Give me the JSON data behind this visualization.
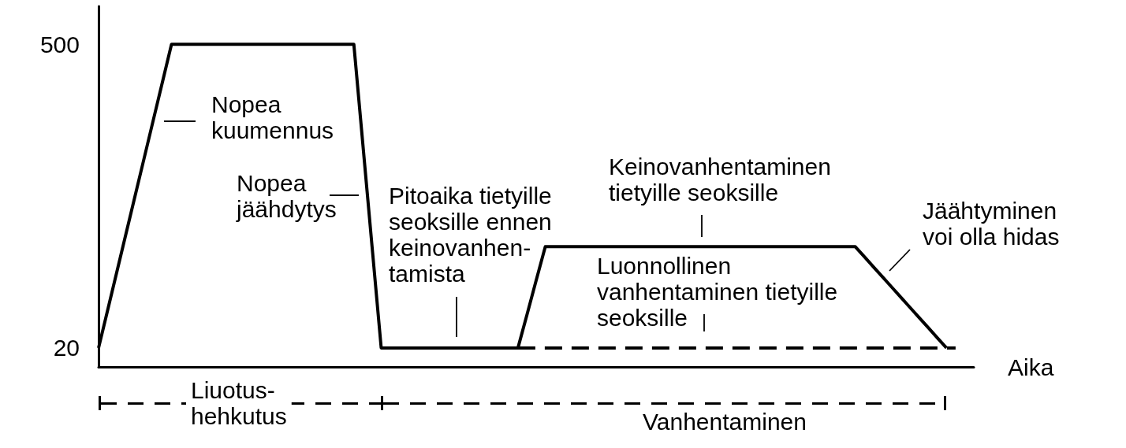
{
  "chart_data": {
    "type": "line",
    "xlabel": "Aika",
    "categories": [
      null,
      null,
      null,
      null,
      null,
      null,
      null,
      null,
      null,
      null,
      null,
      null,
      null,
      null,
      null,
      null,
      null,
      null,
      null,
      null,
      null,
      null,
      null,
      null,
      null,
      null,
      null,
      null,
      null,
      null,
      null,
      null,
      null,
      null,
      null,
      null,
      null,
      null,
      null,
      null,
      null,
      null,
      null,
      null,
      null,
      null,
      null,
      null,
      null,
      null,
      null,
      null,
      null,
      null,
      null,
      null,
      null,
      null,
      null,
      null,
      null,
      null,
      null,
      null,
      null,
      null,
      null,
      null,
      null,
      null,
      null,
      null,
      null,
      null,
      null,
      null,
      null,
      null,
      null,
      null,
      null,
      null,
      null,
      null,
      null,
      null,
      null,
      null,
      null,
      null,
      null,
      null,
      null,
      null,
      null,
      null,
      null
    ],
    "series": [
      {
        "color": "#000000",
        "line_style": "solid",
        "values": [
          20,
          80,
          140,
          200,
          260,
          320,
          380,
          440,
          500,
          500,
          500,
          500,
          500,
          500,
          500,
          500,
          500,
          500,
          500,
          500,
          500,
          500,
          500,
          500,
          500,
          500,
          500,
          500,
          500,
          340,
          180,
          20,
          20,
          20,
          20,
          20,
          20,
          20,
          20,
          20,
          20,
          20,
          20,
          20,
          20,
          20,
          20,
          73,
          127,
          180,
          180,
          180,
          180,
          180,
          180,
          180,
          180,
          180,
          180,
          180,
          180,
          180,
          180,
          180,
          180,
          180,
          180,
          180,
          180,
          180,
          180,
          180,
          180,
          180,
          180,
          180,
          180,
          180,
          180,
          180,
          180,
          180,
          180,
          180,
          164,
          148,
          132,
          116,
          100,
          84,
          68,
          52,
          36,
          20,
          null,
          null,
          null
        ]
      },
      {
        "color": "#000000",
        "line_style": "dashed",
        "values": [
          null,
          null,
          null,
          null,
          null,
          null,
          null,
          null,
          null,
          null,
          null,
          null,
          null,
          null,
          null,
          null,
          null,
          null,
          null,
          null,
          null,
          null,
          null,
          null,
          null,
          null,
          null,
          null,
          null,
          null,
          null,
          null,
          null,
          null,
          null,
          null,
          null,
          null,
          null,
          null,
          null,
          null,
          null,
          null,
          null,
          null,
          20,
          20,
          20,
          20,
          20,
          20,
          20,
          20,
          20,
          20,
          20,
          20,
          20,
          20,
          20,
          20,
          20,
          20,
          20,
          20,
          20,
          20,
          20,
          20,
          20,
          20,
          20,
          20,
          20,
          20,
          20,
          20,
          20,
          20,
          20,
          20,
          20,
          20,
          20,
          20,
          20,
          20,
          20,
          20,
          20,
          20,
          20,
          20,
          20,
          null,
          null
        ]
      }
    ],
    "ylim": [
      -10,
      560
    ],
    "yticks": [
      20,
      500
    ],
    "tick_labels": "y",
    "marker": "none",
    "annotations": [
      "Nopea\nkuumennus",
      "Nopea\njäähdytys",
      "Pitoaika tietyille\nseoksille ennen\nkeinovanhen-\ntamista",
      "Keinovanhentaminen\ntietyille seoksille",
      "Luonnollinen\nvanhentaminen tietyille\nseoksille",
      "Jäähtyminen\nvoi olla hidas",
      "Liuotus-\nhehkutus",
      "Vanhentaminen"
    ]
  }
}
